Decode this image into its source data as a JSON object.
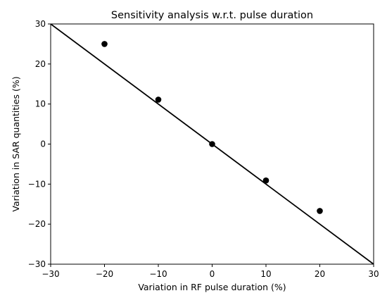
{
  "chart_data": {
    "type": "scatter",
    "title": "Sensitivity analysis w.r.t. pulse duration",
    "xlabel": "Variation in RF pulse duration (%)",
    "ylabel": "Variation in SAR quantities (%)",
    "xlim": [
      -30,
      30
    ],
    "ylim": [
      -30,
      30
    ],
    "xticks": [
      -30,
      -20,
      -10,
      0,
      10,
      20,
      30
    ],
    "yticks": [
      -30,
      -20,
      -10,
      0,
      10,
      20,
      30
    ],
    "xtick_labels": [
      "−30",
      "−20",
      "−10",
      "0",
      "10",
      "20",
      "30"
    ],
    "ytick_labels": [
      "−30",
      "−20",
      "−10",
      "0",
      "10",
      "20",
      "30"
    ],
    "grid": false,
    "points": {
      "x": [
        -20,
        -10,
        0,
        10,
        20
      ],
      "y": [
        25,
        11.1,
        0,
        -9.1,
        -16.7
      ],
      "color": "#000000",
      "marker": "circle"
    },
    "line": {
      "x": [
        -30,
        30
      ],
      "y": [
        30,
        -30
      ],
      "color": "#000000"
    }
  }
}
